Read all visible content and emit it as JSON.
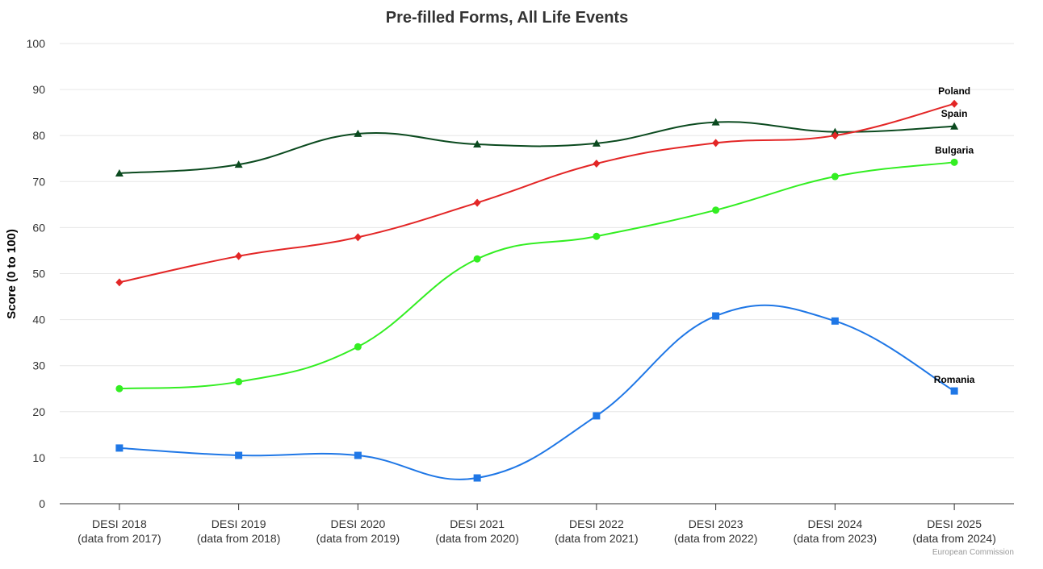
{
  "chart_data": {
    "type": "line",
    "title": "Pre-filled Forms, All Life Events",
    "ylabel": "Score (0 to 100)",
    "xlabel": "",
    "ylim": [
      0,
      100
    ],
    "yticks": [
      0,
      10,
      20,
      30,
      40,
      50,
      60,
      70,
      80,
      90,
      100
    ],
    "grid": true,
    "categories": [
      [
        "DESI 2018",
        "(data from 2017)"
      ],
      [
        "DESI 2019",
        "(data from 2018)"
      ],
      [
        "DESI 2020",
        "(data from 2019)"
      ],
      [
        "DESI 2021",
        "(data from 2020)"
      ],
      [
        "DESI 2022",
        "(data from 2021)"
      ],
      [
        "DESI 2023",
        "(data from 2022)"
      ],
      [
        "DESI 2024",
        "(data from 2023)"
      ],
      [
        "DESI 2025",
        "(data from 2024)"
      ]
    ],
    "series": [
      {
        "name": "Spain",
        "color": "#0b4a1f",
        "marker": "triangle",
        "values": [
          71.8,
          73.7,
          80.4,
          78.1,
          78.3,
          82.9,
          80.8,
          82.0
        ]
      },
      {
        "name": "Poland",
        "color": "#e32626",
        "marker": "diamond",
        "values": [
          48.1,
          53.8,
          57.9,
          65.4,
          73.9,
          78.4,
          80.0,
          86.9
        ]
      },
      {
        "name": "Bulgaria",
        "color": "#33ee22",
        "marker": "circle",
        "values": [
          25.0,
          26.5,
          34.1,
          53.2,
          58.1,
          63.8,
          71.1,
          74.2
        ]
      },
      {
        "name": "Romania",
        "color": "#1f77e6",
        "marker": "square",
        "values": [
          12.1,
          10.5,
          10.5,
          5.6,
          19.1,
          40.8,
          39.7,
          24.5
        ]
      }
    ]
  },
  "credit": "European Commission"
}
